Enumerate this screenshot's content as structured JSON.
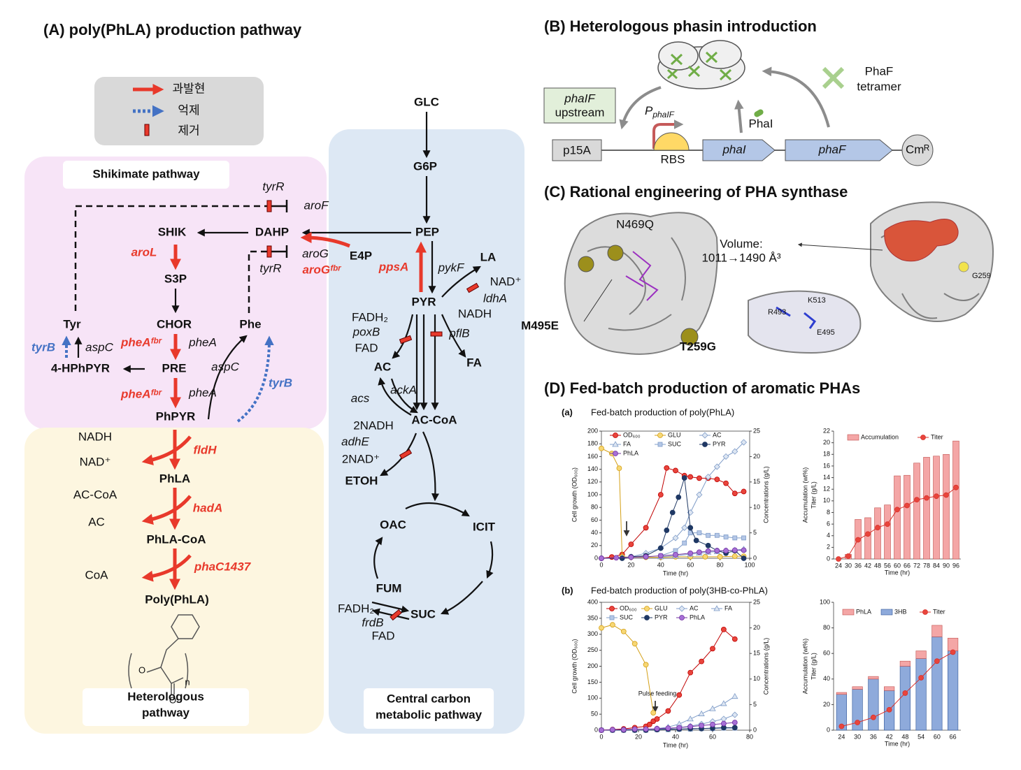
{
  "panel_a": {
    "title": "(A) poly(PhLA) production pathway",
    "legend": [
      "과발현",
      "억제",
      "제거"
    ],
    "shikimate_label": "Shikimate pathway",
    "heterologous_label": [
      "Heterologous",
      "pathway"
    ],
    "central_label": [
      "Central carbon",
      "metabolic pathway"
    ],
    "metabolites": [
      "GLC",
      "G6P",
      "PEP",
      "E4P",
      "DAHP",
      "SHIK",
      "S3P",
      "CHOR",
      "Tyr",
      "Phe",
      "PRE",
      "4-HPhPYR",
      "PhPYR",
      "PhLA",
      "PhLA-CoA",
      "Poly(PhLA)",
      "PYR",
      "LA",
      "AC",
      "FA",
      "AC-CoA",
      "ETOH",
      "OAC",
      "ICIT",
      "FUM",
      "SUC"
    ],
    "cofactors": [
      "NADH",
      "NAD⁺",
      "AC-CoA",
      "AC",
      "CoA",
      "NAD⁺",
      "NADH",
      "FADH₂",
      "FAD",
      "2NADH",
      "2NAD⁺",
      "FADH₂",
      "FAD"
    ],
    "genes": [
      "tyrR",
      "aroF",
      "aroG",
      "tyrR",
      "aspC",
      "pheA",
      "aspC",
      "pheA",
      "pykF",
      "ldhA",
      "poxB",
      "pflB",
      "ackA",
      "acs",
      "adhE",
      "frdB"
    ],
    "overexpressed_genes": [
      "aroL",
      "pheAᶠᵇʳ",
      "pheAᶠᵇʳ",
      "aroGᶠᵇʳ",
      "ppsA",
      "fldH",
      "hadA",
      "phaC1437"
    ],
    "repressed_genes": [
      "tyrB",
      "tyrB"
    ],
    "structure_labels": [
      "O",
      "O",
      "n"
    ]
  },
  "panel_b": {
    "title": "(B) Heterologous phasin introduction",
    "upstream_box": [
      "phaIF",
      "upstream"
    ],
    "promoter": {
      "main": "P",
      "sub": "phaIF"
    },
    "rbs": "RBS",
    "origin": "p15A",
    "gene_1": "phaI",
    "gene_2": "phaF",
    "marker": "Cmᴿ",
    "protein_1": "PhaI",
    "protein_2": [
      "PhaF",
      "tetramer"
    ]
  },
  "panel_c": {
    "title": "(C) Rational engineering of PHA synthase",
    "mutations": [
      "N469Q",
      "M495E",
      "T259G"
    ],
    "volume": [
      "Volume:",
      "1011→1490 Å³"
    ],
    "residues": [
      "R493",
      "K513",
      "E495",
      "G259"
    ]
  },
  "panel_d": {
    "title": "(D) Fed-batch production of aromatic PHAs",
    "subpanels": [
      {
        "label": "(a)",
        "title": "Fed-batch production of poly(PhLA)"
      },
      {
        "label": "(b)",
        "title": "Fed-batch production of poly(3HB-co-PhLA)"
      }
    ],
    "annotation": "Pulse feeding"
  },
  "chart_data": [
    {
      "type": "line",
      "xlabel": "Time (hr)",
      "ylabel": "Cell growth (OD₆₀₀)",
      "y2label": "Concentrations (g/L)",
      "xlim": [
        0,
        100
      ],
      "xticks": [
        0,
        20,
        40,
        60,
        80,
        100
      ],
      "ylim": [
        0,
        200
      ],
      "yticks": [
        0,
        20,
        40,
        60,
        80,
        100,
        120,
        140,
        160,
        180,
        200
      ],
      "y2lim": [
        0,
        25
      ],
      "y2ticks": [
        0,
        5,
        10,
        15,
        20,
        25
      ],
      "legend_columns": 3,
      "series": [
        {
          "name": "OD₆₀₀",
          "color": "#c00000",
          "fill": "#e8453c",
          "marker": "circle",
          "axis": "y",
          "x": [
            0,
            7,
            14,
            20,
            30,
            40,
            44,
            50,
            56,
            60,
            66,
            72,
            78,
            84,
            90,
            96
          ],
          "values": [
            0,
            2,
            6,
            22,
            48,
            100,
            142,
            138,
            130,
            128,
            126,
            126,
            124,
            118,
            102,
            105
          ]
        },
        {
          "name": "GLU",
          "color": "#d4a017",
          "fill": "#f7d774",
          "marker": "circle",
          "axis": "y2",
          "x": [
            0,
            7,
            12,
            14,
            20,
            30,
            40,
            50,
            60,
            70,
            80,
            90,
            96
          ],
          "values": [
            21.6,
            20.6,
            17.7,
            0.3,
            0.2,
            0.2,
            0.2,
            0.3,
            0.3,
            0.3,
            0.3,
            0.4,
            0.4
          ]
        },
        {
          "name": "AC",
          "color": "#7f9cc8",
          "fill": "#dde6f2",
          "marker": "diamond",
          "axis": "y2",
          "x": [
            0,
            14,
            20,
            30,
            40,
            50,
            56,
            60,
            66,
            72,
            78,
            84,
            90,
            96
          ],
          "values": [
            0,
            0.1,
            0.3,
            1,
            2,
            4,
            6,
            9,
            12.5,
            16,
            18,
            20,
            21,
            22.8
          ]
        },
        {
          "name": "FA",
          "color": "#7f9cc8",
          "fill": "#dde6f2",
          "marker": "triangle",
          "axis": "y2",
          "x": [
            40,
            50,
            60,
            66,
            72,
            78,
            84,
            90,
            96
          ],
          "values": [
            0.3,
            0.5,
            0.8,
            1,
            1.2,
            1.3,
            1.5,
            1.6,
            1.8
          ]
        },
        {
          "name": "SUC",
          "color": "#7f9cc8",
          "fill": "#b4c7e7",
          "marker": "square",
          "axis": "y2",
          "x": [
            40,
            50,
            56,
            60,
            66,
            72,
            78,
            84,
            90,
            96
          ],
          "values": [
            0.5,
            1.5,
            3,
            5,
            5,
            4.5,
            4.5,
            4.2,
            4,
            4
          ]
        },
        {
          "name": "PYR",
          "color": "#1f3864",
          "fill": "#1f3864",
          "marker": "circle",
          "axis": "y2",
          "x": [
            0,
            14,
            20,
            30,
            40,
            44,
            48,
            52,
            56,
            60,
            64,
            72,
            78,
            84,
            90,
            96
          ],
          "values": [
            0,
            0,
            0.3,
            0.5,
            2,
            5.5,
            9,
            12,
            15.8,
            6,
            3.5,
            2.5,
            1.5,
            1,
            1.5,
            0
          ]
        },
        {
          "name": "PhLA",
          "color": "#7030a0",
          "fill": "#a66fd6",
          "marker": "circle",
          "axis": "y2",
          "x": [
            0,
            10,
            20,
            30,
            40,
            50,
            60,
            66,
            72,
            78,
            84,
            90,
            96
          ],
          "values": [
            0,
            0.1,
            0.2,
            0.3,
            0.5,
            0.7,
            1,
            1.2,
            1.4,
            1.5,
            1.5,
            1.6,
            1.6
          ]
        }
      ]
    },
    {
      "type": "bar",
      "xlabel": "Time (hr)",
      "ylabel": [
        "Accumulation (wt%)",
        "Titer (g/L)"
      ],
      "categories": [
        "24",
        "30",
        "36",
        "42",
        "48",
        "56",
        "60",
        "66",
        "72",
        "78",
        "84",
        "90",
        "96"
      ],
      "ylim": [
        0,
        22
      ],
      "yticks": [
        0,
        2,
        4,
        6,
        8,
        10,
        12,
        14,
        16,
        18,
        20,
        22
      ],
      "stacked": false,
      "series": [
        {
          "name": "Accumulation",
          "color": "#c0504d",
          "fill": "#f4a6a6",
          "values": [
            0,
            0.8,
            6.8,
            7.1,
            8.8,
            9.3,
            14.3,
            14.4,
            16.5,
            17.5,
            17.7,
            18,
            20.3
          ]
        },
        {
          "name": "Titer",
          "type": "line",
          "color": "#d9302a",
          "fill": "#e8453c",
          "values": [
            0,
            0.5,
            3.3,
            4.3,
            5.4,
            6,
            8.5,
            9.2,
            10.2,
            10.5,
            10.8,
            11,
            12.3
          ]
        }
      ]
    },
    {
      "type": "line",
      "xlabel": "Time (hr)",
      "ylabel": "Cell growth (OD₆₀₀)",
      "y2label": "Concentrations (g/L)",
      "xlim": [
        0,
        80
      ],
      "xticks": [
        0,
        20,
        40,
        60,
        80
      ],
      "ylim": [
        0,
        400
      ],
      "yticks": [
        0,
        50,
        100,
        150,
        200,
        250,
        300,
        350,
        400
      ],
      "y2lim": [
        0,
        25
      ],
      "y2ticks": [
        0,
        5,
        10,
        15,
        20,
        25
      ],
      "legend_columns": 4,
      "series": [
        {
          "name": "OD₆₀₀",
          "color": "#c00000",
          "fill": "#e8453c",
          "marker": "circle",
          "axis": "y",
          "x": [
            0,
            6,
            12,
            18,
            24,
            26,
            28,
            30,
            36,
            42,
            48,
            54,
            60,
            66,
            72
          ],
          "values": [
            0,
            2,
            4,
            8,
            12,
            18,
            28,
            35,
            60,
            110,
            180,
            215,
            255,
            315,
            285
          ]
        },
        {
          "name": "GLU",
          "color": "#d4a017",
          "fill": "#f7d774",
          "marker": "circle",
          "axis": "y2",
          "x": [
            0,
            6,
            12,
            18,
            24,
            28
          ],
          "values": [
            20,
            20.6,
            19.3,
            16.9,
            12.8,
            3.4
          ]
        },
        {
          "name": "AC",
          "color": "#7f9cc8",
          "fill": "#dde6f2",
          "marker": "diamond",
          "axis": "y2",
          "x": [
            30,
            36,
            42,
            48,
            54,
            60,
            66,
            72
          ],
          "values": [
            0.2,
            0.3,
            0.5,
            0.8,
            1.2,
            1.7,
            2.2,
            3.0
          ]
        },
        {
          "name": "FA",
          "color": "#7f9cc8",
          "fill": "#dde6f2",
          "marker": "triangle",
          "axis": "y2",
          "x": [
            30,
            36,
            42,
            48,
            54,
            60,
            66,
            72
          ],
          "values": [
            0.3,
            0.6,
            1.2,
            2.2,
            3.2,
            4.2,
            5.2,
            6.6
          ]
        },
        {
          "name": "SUC",
          "color": "#7f9cc8",
          "fill": "#b4c7e7",
          "marker": "square",
          "axis": "y2",
          "x": [
            0,
            6,
            12,
            18,
            24,
            30,
            36,
            42,
            48,
            54,
            60,
            66,
            72
          ],
          "values": [
            0,
            0,
            0,
            0,
            0,
            0.1,
            0.1,
            0.2,
            0.2,
            0.3,
            0.3,
            0.4,
            0.4
          ]
        },
        {
          "name": "PYR",
          "color": "#1f3864",
          "fill": "#1f3864",
          "marker": "circle",
          "axis": "y2",
          "x": [
            0,
            6,
            12,
            18,
            24,
            30,
            36,
            42,
            48,
            54,
            60,
            66,
            72
          ],
          "values": [
            0,
            0,
            0,
            0,
            0,
            0.1,
            0.2,
            0.2,
            0.3,
            0.3,
            0.4,
            0.5,
            0.5
          ]
        },
        {
          "name": "PhLA",
          "color": "#7030a0",
          "fill": "#a66fd6",
          "marker": "circle",
          "axis": "y2",
          "x": [
            0,
            6,
            12,
            18,
            24,
            30,
            36,
            42,
            48,
            54,
            60,
            66,
            72
          ],
          "values": [
            0,
            0.1,
            0.1,
            0.2,
            0.2,
            0.3,
            0.4,
            0.5,
            0.7,
            0.9,
            1.1,
            1.3,
            1.5
          ]
        }
      ]
    },
    {
      "type": "bar",
      "xlabel": "Time (hr)",
      "ylabel": [
        "Accumulation (wt%)",
        "Titer (g/L)"
      ],
      "categories": [
        "24",
        "30",
        "36",
        "42",
        "48",
        "54",
        "60",
        "66"
      ],
      "ylim": [
        0,
        100
      ],
      "yticks": [
        0,
        20,
        40,
        60,
        80,
        100
      ],
      "stacked": true,
      "series": [
        {
          "name": "PhLA",
          "color": "#c0504d",
          "fill": "#f4a6a6",
          "values": [
            1.5,
            2,
            2,
            3,
            4,
            6,
            9,
            10
          ]
        },
        {
          "name": "3HB",
          "color": "#2f5597",
          "fill": "#8eaadb",
          "values": [
            28,
            32,
            40,
            31,
            50,
            56,
            73,
            62
          ]
        },
        {
          "name": "Titer",
          "type": "line",
          "color": "#d9302a",
          "fill": "#e8453c",
          "values": [
            3,
            6,
            10,
            16,
            29,
            41,
            54,
            61
          ]
        }
      ]
    }
  ]
}
